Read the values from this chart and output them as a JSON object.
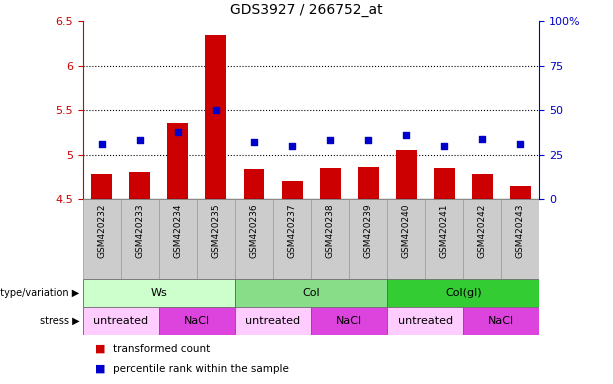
{
  "title": "GDS3927 / 266752_at",
  "samples": [
    "GSM420232",
    "GSM420233",
    "GSM420234",
    "GSM420235",
    "GSM420236",
    "GSM420237",
    "GSM420238",
    "GSM420239",
    "GSM420240",
    "GSM420241",
    "GSM420242",
    "GSM420243"
  ],
  "bar_values": [
    4.78,
    4.8,
    5.36,
    6.34,
    4.84,
    4.7,
    4.85,
    4.86,
    5.05,
    4.85,
    4.78,
    4.65
  ],
  "dot_values": [
    31,
    33,
    38,
    50,
    32,
    30,
    33,
    33,
    36,
    30,
    34,
    31
  ],
  "bar_color": "#cc0000",
  "dot_color": "#0000cc",
  "ylim_left": [
    4.5,
    6.5
  ],
  "ylim_right": [
    0,
    100
  ],
  "yticks_left": [
    4.5,
    5.0,
    5.5,
    6.0,
    6.5
  ],
  "ytick_labels_left": [
    "4.5",
    "5",
    "5.5",
    "6",
    "6.5"
  ],
  "yticks_right": [
    0,
    25,
    50,
    75,
    100
  ],
  "ytick_labels_right": [
    "0",
    "25",
    "50",
    "75",
    "100%"
  ],
  "grid_lines": [
    5.0,
    5.5,
    6.0
  ],
  "genotype_groups": [
    {
      "label": "Ws",
      "start": 0,
      "end": 4,
      "color": "#ccffcc"
    },
    {
      "label": "Col",
      "start": 4,
      "end": 8,
      "color": "#88dd88"
    },
    {
      "label": "Col(gl)",
      "start": 8,
      "end": 12,
      "color": "#33cc33"
    }
  ],
  "stress_groups": [
    {
      "label": "untreated",
      "start": 0,
      "end": 2,
      "color": "#ffccff"
    },
    {
      "label": "NaCl",
      "start": 2,
      "end": 4,
      "color": "#dd44dd"
    },
    {
      "label": "untreated",
      "start": 4,
      "end": 6,
      "color": "#ffccff"
    },
    {
      "label": "NaCl",
      "start": 6,
      "end": 8,
      "color": "#dd44dd"
    },
    {
      "label": "untreated",
      "start": 8,
      "end": 10,
      "color": "#ffccff"
    },
    {
      "label": "NaCl",
      "start": 10,
      "end": 12,
      "color": "#dd44dd"
    }
  ],
  "genotype_label": "genotype/variation",
  "stress_label": "stress",
  "legend_bar": "transformed count",
  "legend_dot": "percentile rank within the sample",
  "bar_width": 0.55,
  "cell_color": "#cccccc",
  "cell_edgecolor": "#999999"
}
